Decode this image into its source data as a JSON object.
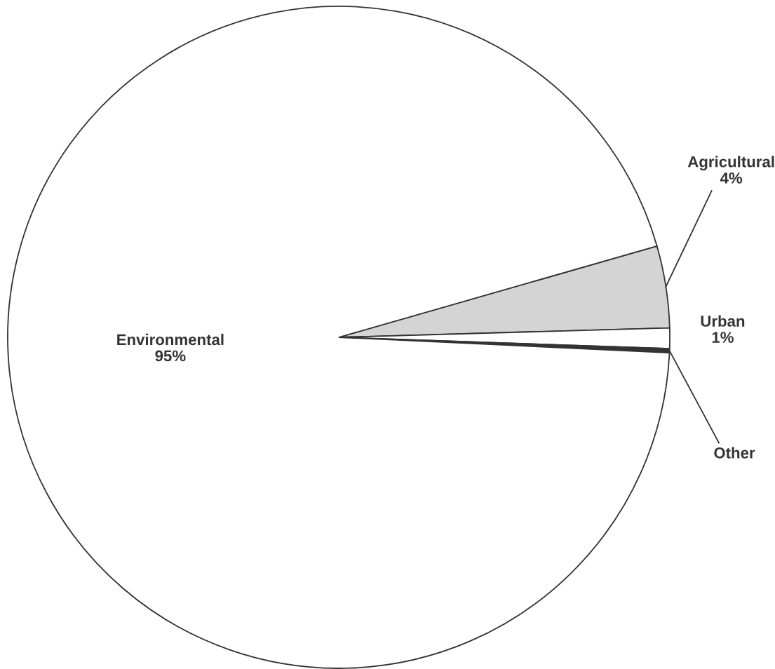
{
  "chart_data": {
    "type": "pie",
    "categories": [
      "Agricultural",
      "Urban",
      "Other",
      "Environmental"
    ],
    "values": [
      4,
      1,
      0.2,
      95
    ],
    "colors": [
      "#d4d4d4",
      "#ffffff",
      "#333333",
      "#ffffff"
    ],
    "value_labels": [
      "4%",
      "1%",
      null,
      "95%"
    ]
  }
}
